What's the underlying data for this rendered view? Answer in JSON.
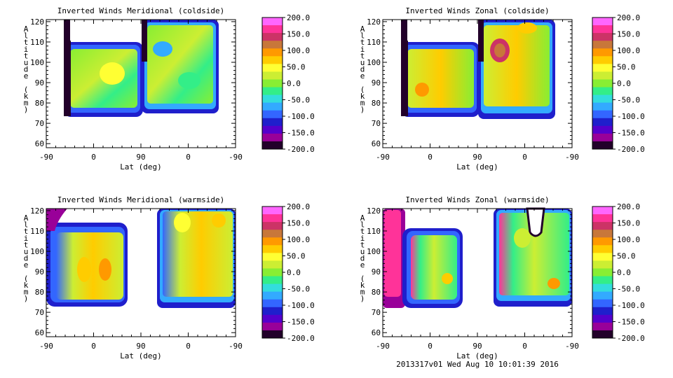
{
  "footer": "2013317v01 Wed Aug 10 10:01:39 2016",
  "chart_data": [
    {
      "type": "heatmap",
      "title": "Inverted Winds Meridional (coldside)",
      "xlabel": "Lat (deg)",
      "ylabel": "Altitude (km)",
      "x_ticks": [
        "-90",
        "0",
        "90",
        "0",
        "-90"
      ],
      "y_ticks": [
        "60",
        "70",
        "80",
        "90",
        "100",
        "110",
        "120"
      ],
      "ylim": [
        58,
        121
      ],
      "colorbar_ticks": [
        "200.0",
        "150.0",
        "100.0",
        "50.0",
        "0.0",
        "-50.0",
        "-100.0",
        "-150.0",
        "-200.0"
      ],
      "colorbar_range": [
        -200,
        200
      ]
    },
    {
      "type": "heatmap",
      "title": "Inverted Winds Zonal (coldside)",
      "xlabel": "Lat (deg)",
      "ylabel": "Altitude (km)",
      "x_ticks": [
        "-90",
        "0",
        "90",
        "0",
        "-90"
      ],
      "y_ticks": [
        "60",
        "70",
        "80",
        "90",
        "100",
        "110",
        "120"
      ],
      "ylim": [
        58,
        121
      ],
      "colorbar_ticks": [
        "200.0",
        "150.0",
        "100.0",
        "50.0",
        "0.0",
        "-50.0",
        "-100.0",
        "-150.0",
        "-200.0"
      ],
      "colorbar_range": [
        -200,
        200
      ]
    },
    {
      "type": "heatmap",
      "title": "Inverted Winds Meridional (warmside)",
      "xlabel": "Lat (deg)",
      "ylabel": "Altitude (km)",
      "x_ticks": [
        "-90",
        "0",
        "90",
        "0",
        "-90"
      ],
      "y_ticks": [
        "60",
        "70",
        "80",
        "90",
        "100",
        "110",
        "120"
      ],
      "ylim": [
        58,
        121
      ],
      "colorbar_ticks": [
        "200.0",
        "150.0",
        "100.0",
        "50.0",
        "0.0",
        "-50.0",
        "-100.0",
        "-150.0",
        "-200.0"
      ],
      "colorbar_range": [
        -200,
        200
      ]
    },
    {
      "type": "heatmap",
      "title": "Inverted Winds Zonal (warmside)",
      "xlabel": "Lat (deg)",
      "ylabel": "Altitude (km)",
      "x_ticks": [
        "-90",
        "0",
        "90",
        "0",
        "-90"
      ],
      "y_ticks": [
        "60",
        "70",
        "80",
        "90",
        "100",
        "110",
        "120"
      ],
      "ylim": [
        58,
        121
      ],
      "colorbar_ticks": [
        "200.0",
        "150.0",
        "100.0",
        "50.0",
        "0.0",
        "-50.0",
        "-100.0",
        "-150.0",
        "-200.0"
      ],
      "colorbar_range": [
        -200,
        200
      ]
    }
  ],
  "colorbar_colors": [
    "#ff66ff",
    "#ff3399",
    "#cc3366",
    "#c8773a",
    "#ff9900",
    "#ffcc00",
    "#ffff33",
    "#ccee33",
    "#88ee33",
    "#33ee88",
    "#33dddd",
    "#33aaff",
    "#3366ff",
    "#1f1fcc",
    "#5500cc",
    "#990099",
    "#22002a"
  ],
  "colors": {
    "text": "#000000",
    "axis": "#000000",
    "background": "#ffffff"
  }
}
